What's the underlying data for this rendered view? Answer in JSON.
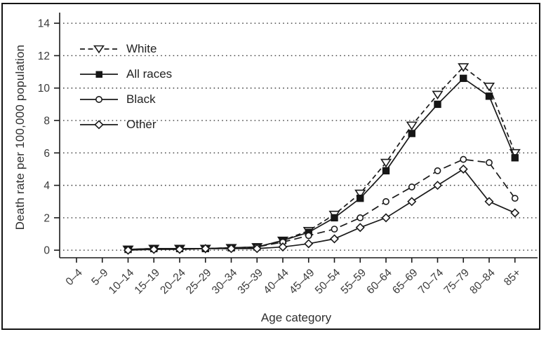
{
  "accent_colors": {
    "ink": "#1a1a1a",
    "grid": "#3d3d3d",
    "background": "#ffffff"
  },
  "chart_data": {
    "type": "line",
    "title": "",
    "xlabel": "Age category",
    "ylabel": "Death rate per 100,000 population",
    "ylim": [
      0,
      14
    ],
    "yticks": [
      0,
      2,
      4,
      6,
      8,
      10,
      12,
      14
    ],
    "grid": "horizontal-dotted",
    "legend_position": "top-left-inside",
    "categories": [
      "0–4",
      "5–9",
      "10–14",
      "15–19",
      "20–24",
      "25–29",
      "30–34",
      "35–39",
      "40–44",
      "45–49",
      "50–54",
      "55–59",
      "60–64",
      "65–69",
      "70–74",
      "75–79",
      "80–84",
      "85+"
    ],
    "series": [
      {
        "name": "White",
        "line": "dashed",
        "marker": "triangle-down-open",
        "values": [
          null,
          null,
          0.05,
          0.1,
          0.1,
          0.1,
          0.15,
          0.2,
          0.6,
          1.2,
          2.2,
          3.5,
          5.4,
          7.7,
          9.6,
          11.3,
          10.1,
          6.0
        ]
      },
      {
        "name": "All races",
        "line": "solid",
        "marker": "square-filled",
        "values": [
          null,
          null,
          0.05,
          0.1,
          0.1,
          0.1,
          0.15,
          0.2,
          0.6,
          1.1,
          2.0,
          3.2,
          4.9,
          7.2,
          9.0,
          10.6,
          9.5,
          5.7
        ]
      },
      {
        "name": "Black",
        "line": "long-dashed",
        "marker": "circle-open",
        "values": [
          null,
          null,
          0.05,
          0.1,
          0.1,
          0.1,
          0.1,
          0.2,
          0.5,
          0.9,
          1.3,
          2.0,
          3.0,
          3.9,
          4.9,
          5.6,
          5.4,
          3.2
        ]
      },
      {
        "name": "Other",
        "line": "solid",
        "marker": "diamond-open",
        "values": [
          null,
          null,
          0.0,
          0.05,
          0.05,
          0.1,
          0.1,
          0.1,
          0.2,
          0.4,
          0.7,
          1.4,
          2.0,
          3.0,
          4.0,
          5.0,
          3.0,
          2.3
        ]
      }
    ]
  }
}
